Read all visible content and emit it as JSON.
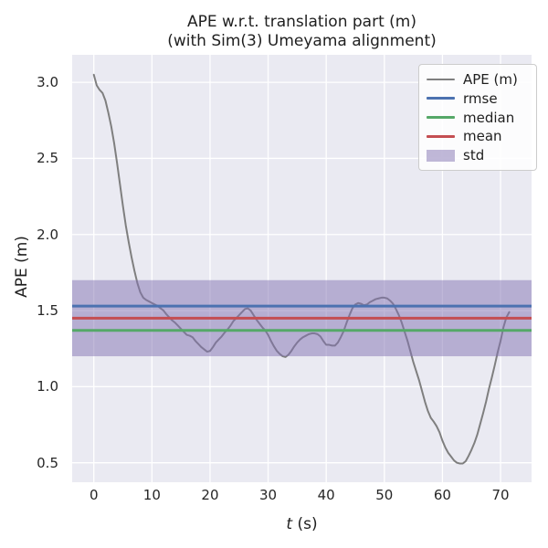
{
  "figure": {
    "title_line1": "APE w.r.t. translation part (m)",
    "title_line2": "(with Sim(3) Umeyama alignment)"
  },
  "axes": {
    "ylabel": "APE (m)",
    "xlabel_var": "t",
    "xlabel_unit": " (s)",
    "xtick_labels": [
      "0",
      "10",
      "20",
      "30",
      "40",
      "50",
      "60",
      "70"
    ],
    "ytick_labels": [
      "0.5",
      "1.0",
      "1.5",
      "2.0",
      "2.5",
      "3.0"
    ]
  },
  "legend": {
    "items": [
      {
        "label": "APE (m)",
        "type": "line",
        "color": "#7f7f7f"
      },
      {
        "label": "rmse",
        "type": "line",
        "color": "#4c72b0"
      },
      {
        "label": "median",
        "type": "line",
        "color": "#55a868"
      },
      {
        "label": "mean",
        "type": "line",
        "color": "#c44e52"
      },
      {
        "label": "std",
        "type": "patch",
        "color": "#8172b2",
        "alpha": 0.5
      }
    ]
  },
  "colors": {
    "figure_bg": "#ffffff",
    "plot_bg": "#eaeaf2",
    "grid": "#ffffff",
    "ape_line": "#7f7f7f",
    "rmse": "#4c72b0",
    "median": "#55a868",
    "mean": "#c44e52",
    "std_fill": "#8172b2",
    "text": "#262626"
  },
  "stats": {
    "rmse": 1.53,
    "mean": 1.45,
    "median": 1.37,
    "std": 0.25
  },
  "chart_data": {
    "type": "line",
    "title": "APE w.r.t. translation part (m)\n(with Sim(3) Umeyama alignment)",
    "xlabel": "t (s)",
    "ylabel": "APE (m)",
    "xlim": [
      -3.73,
      75.34
    ],
    "ylim": [
      0.372,
      3.181
    ],
    "xticks": [
      0,
      10,
      20,
      30,
      40,
      50,
      60,
      70
    ],
    "yticks": [
      0.5,
      1.0,
      1.5,
      2.0,
      2.5,
      3.0
    ],
    "grid": true,
    "legend_position": "upper right",
    "series": [
      {
        "name": "APE (m)",
        "color": "#7f7f7f",
        "x": [
          0,
          0.5,
          1,
          1.5,
          2,
          2.5,
          3,
          3.5,
          4,
          4.5,
          5,
          5.5,
          6,
          6.5,
          7,
          7.5,
          8,
          8.5,
          9,
          9.5,
          10,
          10.5,
          11,
          11.5,
          12,
          12.5,
          13,
          13.5,
          14,
          14.5,
          15,
          15.5,
          16,
          16.5,
          17,
          17.5,
          18,
          18.5,
          19,
          19.5,
          20,
          20.5,
          21,
          21.5,
          22,
          22.5,
          23,
          23.5,
          24,
          24.5,
          25,
          25.5,
          26,
          26.5,
          27,
          27.5,
          28,
          28.5,
          29,
          29.5,
          30,
          30.5,
          31,
          31.5,
          32,
          32.5,
          33,
          33.5,
          34,
          34.5,
          35,
          35.5,
          36,
          36.5,
          37,
          37.5,
          38,
          38.5,
          39,
          39.5,
          40,
          40.5,
          41,
          41.5,
          42,
          42.5,
          43,
          43.5,
          44,
          44.5,
          45,
          45.5,
          46,
          46.5,
          47,
          47.5,
          48,
          48.5,
          49,
          49.5,
          50,
          50.5,
          51,
          51.5,
          52,
          52.5,
          53,
          53.5,
          54,
          54.5,
          55,
          55.5,
          56,
          56.5,
          57,
          57.5,
          58,
          58.5,
          59,
          59.5,
          60,
          60.5,
          61,
          61.5,
          62,
          62.5,
          63,
          63.5,
          64,
          64.5,
          65,
          65.5,
          66,
          66.5,
          67,
          67.5,
          68,
          68.5,
          69,
          69.5,
          70,
          70.5,
          71,
          71.5
        ],
        "y": [
          3.05,
          2.98,
          2.95,
          2.93,
          2.88,
          2.8,
          2.71,
          2.6,
          2.47,
          2.33,
          2.19,
          2.06,
          1.95,
          1.85,
          1.76,
          1.68,
          1.62,
          1.585,
          1.57,
          1.56,
          1.55,
          1.54,
          1.53,
          1.515,
          1.5,
          1.475,
          1.455,
          1.435,
          1.42,
          1.4,
          1.38,
          1.36,
          1.34,
          1.335,
          1.325,
          1.3,
          1.28,
          1.26,
          1.245,
          1.23,
          1.235,
          1.26,
          1.29,
          1.31,
          1.33,
          1.355,
          1.375,
          1.4,
          1.43,
          1.45,
          1.47,
          1.49,
          1.51,
          1.515,
          1.5,
          1.47,
          1.44,
          1.415,
          1.39,
          1.37,
          1.34,
          1.3,
          1.265,
          1.235,
          1.215,
          1.2,
          1.195,
          1.21,
          1.235,
          1.265,
          1.29,
          1.31,
          1.325,
          1.335,
          1.345,
          1.35,
          1.35,
          1.345,
          1.33,
          1.3,
          1.275,
          1.275,
          1.27,
          1.27,
          1.29,
          1.325,
          1.365,
          1.42,
          1.47,
          1.515,
          1.54,
          1.55,
          1.545,
          1.535,
          1.54,
          1.555,
          1.565,
          1.575,
          1.58,
          1.585,
          1.585,
          1.58,
          1.565,
          1.545,
          1.51,
          1.47,
          1.42,
          1.36,
          1.3,
          1.23,
          1.16,
          1.1,
          1.04,
          0.97,
          0.9,
          0.84,
          0.795,
          0.77,
          0.74,
          0.7,
          0.645,
          0.6,
          0.565,
          0.54,
          0.515,
          0.5,
          0.495,
          0.495,
          0.51,
          0.545,
          0.585,
          0.63,
          0.685,
          0.755,
          0.825,
          0.9,
          0.985,
          1.06,
          1.14,
          1.225,
          1.3,
          1.39,
          1.455,
          1.49
        ]
      }
    ],
    "hlines": [
      {
        "name": "rmse",
        "value": 1.53,
        "color": "#4c72b0"
      },
      {
        "name": "median",
        "value": 1.37,
        "color": "#55a868"
      },
      {
        "name": "mean",
        "value": 1.45,
        "color": "#c44e52"
      }
    ],
    "band": {
      "name": "std",
      "from": 1.2,
      "to": 1.7,
      "color": "#8172b2",
      "alpha": 0.5
    }
  }
}
